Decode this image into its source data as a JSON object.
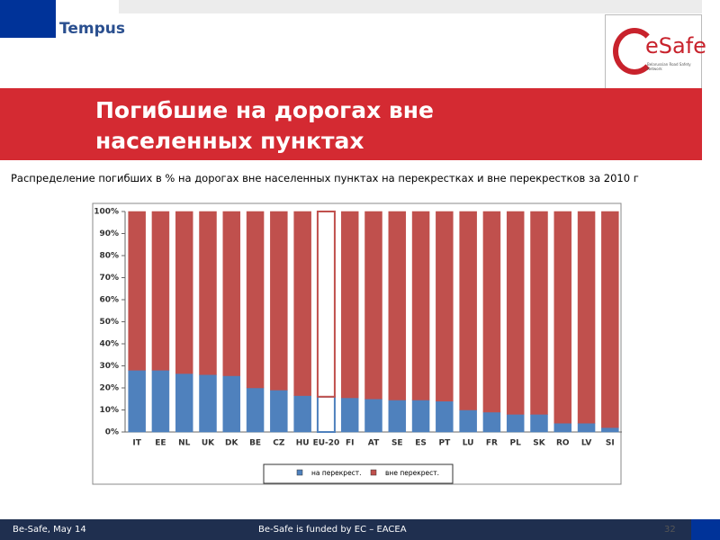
{
  "header": {
    "logo_left": "Tempus",
    "logo_right": "eSafe",
    "logo_right_sub": "Belarussian Road Safety Network"
  },
  "slide": {
    "title": "Погибшие на дорогах вне населенных пунктах"
  },
  "chart_data": {
    "type": "stacked_bar",
    "title": "Распределение погибших в % на дорогах вне населенных пунктах на перекрестках и вне перекрестков за 2010 г",
    "categories": [
      "IT",
      "EE",
      "NL",
      "UK",
      "DK",
      "BE",
      "CZ",
      "HU",
      "EU-20",
      "FI",
      "AT",
      "SE",
      "ES",
      "PT",
      "LU",
      "FR",
      "PL",
      "SK",
      "RO",
      "LV",
      "SI"
    ],
    "highlight_category": "EU-20",
    "series": [
      {
        "name": "на перекрест.",
        "color": "#4f81bd",
        "values": [
          28,
          28,
          26.5,
          26,
          25.5,
          20,
          19,
          16.5,
          16,
          15.5,
          15,
          14.5,
          14.5,
          14,
          10,
          9,
          8,
          8,
          4,
          4,
          2
        ]
      },
      {
        "name": "вне перекрест.",
        "color": "#c0504d",
        "values": [
          72,
          72,
          73.5,
          74,
          74.5,
          80,
          81,
          83.5,
          84,
          84.5,
          85,
          85.5,
          85.5,
          86,
          90,
          91,
          92,
          92,
          96,
          96,
          98
        ]
      }
    ],
    "ylim": [
      0,
      100
    ],
    "yticks": [
      {
        "value": 0,
        "label": "0%"
      },
      {
        "value": 10,
        "label": "10%"
      },
      {
        "value": 20,
        "label": "20%"
      },
      {
        "value": 30,
        "label": "30%"
      },
      {
        "value": 40,
        "label": "40%"
      },
      {
        "value": 50,
        "label": "50%"
      },
      {
        "value": 60,
        "label": "60%"
      },
      {
        "value": 70,
        "label": "70%"
      },
      {
        "value": 80,
        "label": "80%"
      },
      {
        "value": 90,
        "label": "90%"
      },
      {
        "value": 100,
        "label": "100%"
      }
    ],
    "grid": false
  },
  "footer": {
    "left": "Be-Safe, May 14",
    "center": "Be-Safe is funded by EC – EACEA",
    "page": "32"
  }
}
